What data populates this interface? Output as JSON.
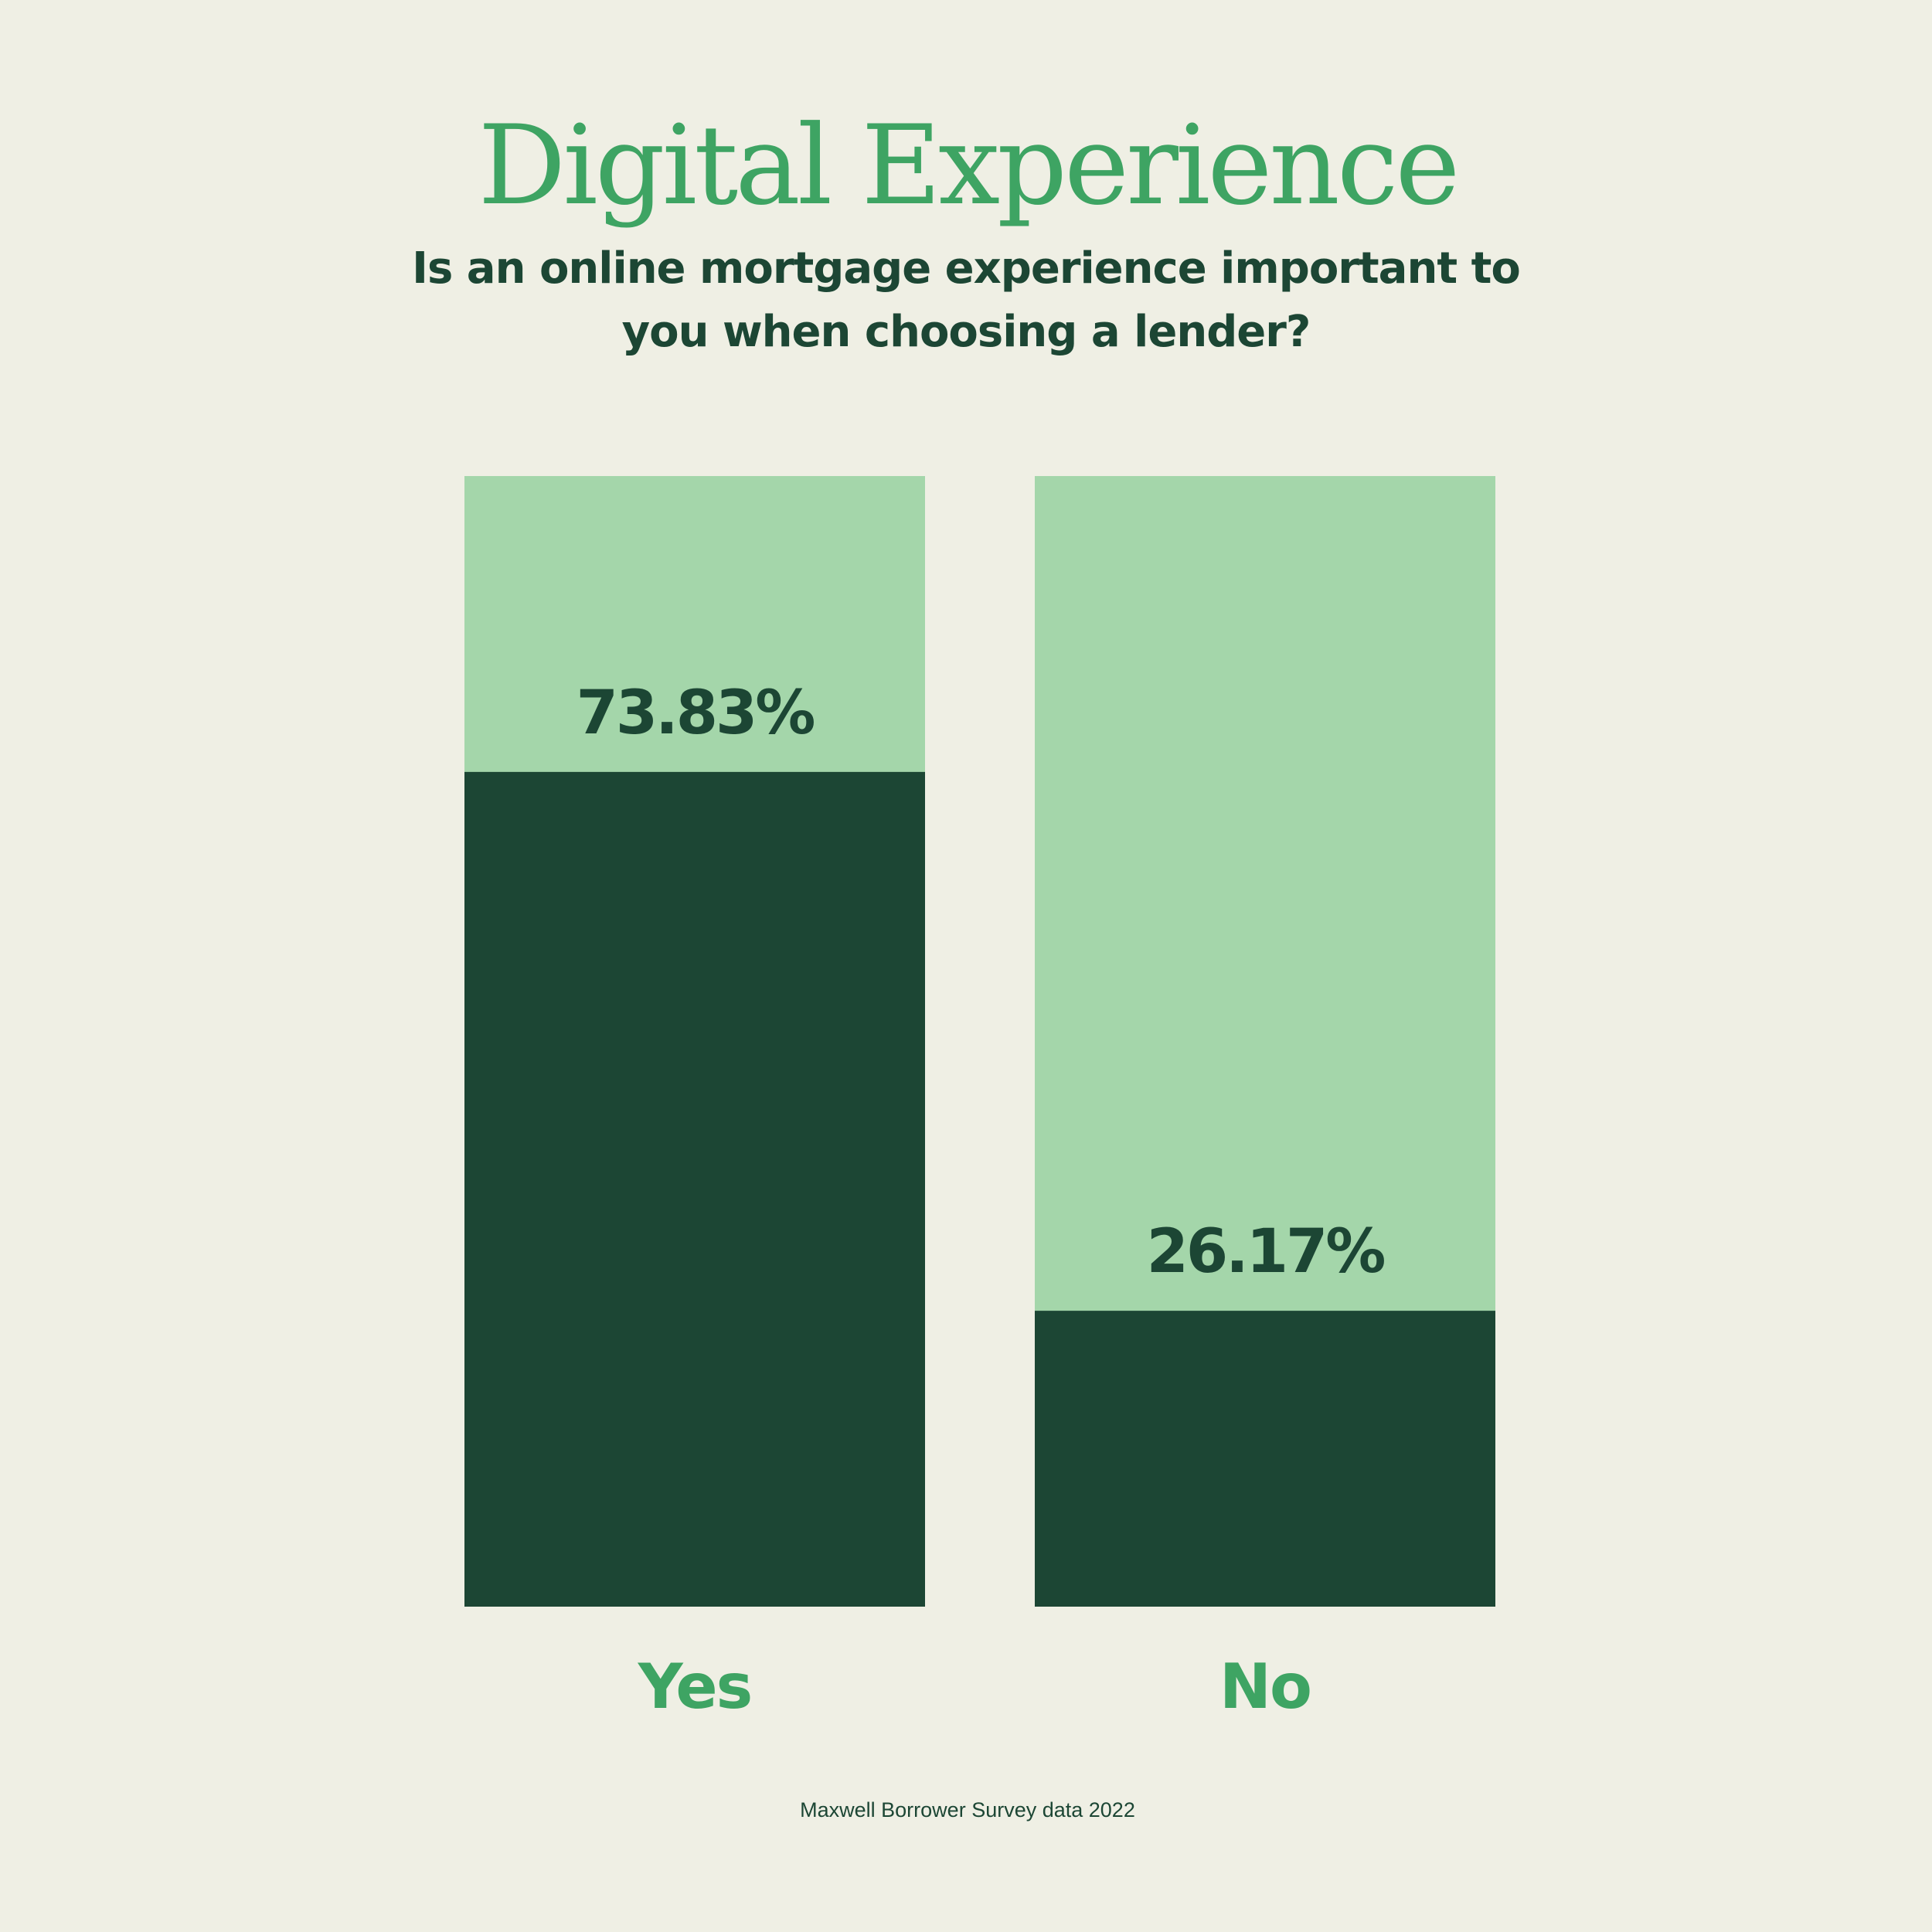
{
  "colors": {
    "background": "#efefe4",
    "title": "#3ea463",
    "subtitle": "#1c4634",
    "bar_filled": "#1c4634",
    "bar_remainder": "#a4d6aa",
    "value_label": "#1c4634",
    "category_label": "#3ea463",
    "source": "#1c4634"
  },
  "chart_data": {
    "type": "bar",
    "title": "Digital Experience",
    "subtitle_lines": [
      "Is an online mortgage experience important to",
      "you when choosing a lender?"
    ],
    "categories": [
      "Yes",
      "No"
    ],
    "values": [
      73.83,
      26.17
    ],
    "value_labels": [
      "73.83%",
      "26.17%"
    ],
    "ylim": [
      0,
      100
    ],
    "unit": "%",
    "grid": false,
    "legend": "none"
  },
  "source": "Maxwell Borrower Survey data 2022"
}
